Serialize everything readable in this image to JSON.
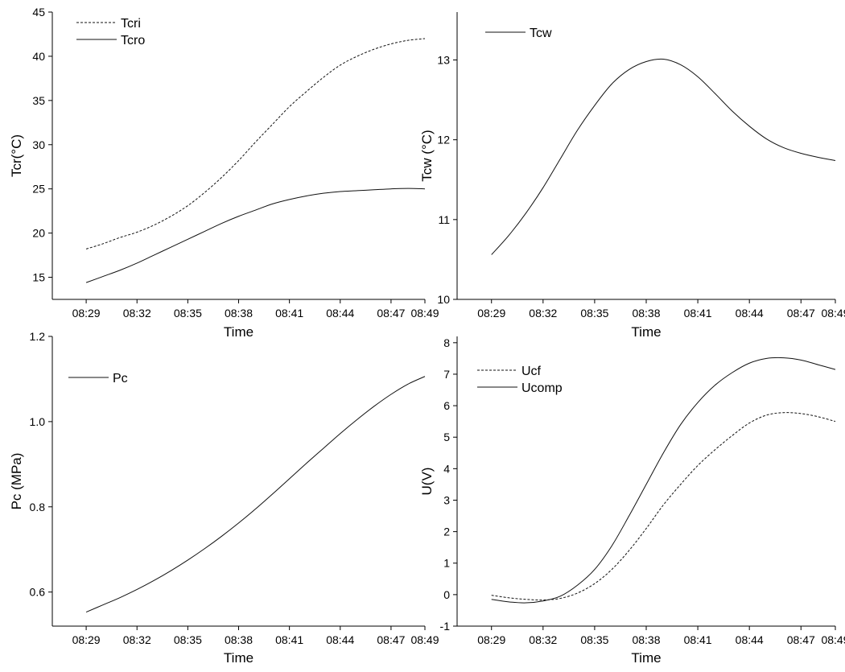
{
  "chart_data": [
    {
      "id": "tcr",
      "type": "line",
      "title": "",
      "xlabel": "Time",
      "ylabel": "Tcr(°C)",
      "xlim": [
        "08:27",
        "08:49"
      ],
      "ylim": [
        12.5,
        45
      ],
      "x_ticks": [
        "08:29",
        "08:32",
        "08:35",
        "08:38",
        "08:41",
        "08:44",
        "08:47",
        "08:49"
      ],
      "y_ticks": [
        15,
        20,
        25,
        30,
        35,
        40,
        45
      ],
      "grid": false,
      "legend": "top-left",
      "series": [
        {
          "name": "Tcri",
          "style": "dashed",
          "x": [
            "08:29",
            "08:30",
            "08:31",
            "08:32",
            "08:33",
            "08:34",
            "08:35",
            "08:36",
            "08:37",
            "08:38",
            "08:39",
            "08:40",
            "08:41",
            "08:42",
            "08:43",
            "08:44",
            "08:45",
            "08:46",
            "08:47",
            "08:48",
            "08:49"
          ],
          "values": [
            18.2,
            18.8,
            19.5,
            20.1,
            20.9,
            21.9,
            23.1,
            24.6,
            26.3,
            28.2,
            30.3,
            32.3,
            34.3,
            36.0,
            37.6,
            39.0,
            40.0,
            40.8,
            41.4,
            41.8,
            42.0
          ]
        },
        {
          "name": "Tcro",
          "style": "solid",
          "x": [
            "08:29",
            "08:30",
            "08:31",
            "08:32",
            "08:33",
            "08:34",
            "08:35",
            "08:36",
            "08:37",
            "08:38",
            "08:39",
            "08:40",
            "08:41",
            "08:42",
            "08:43",
            "08:44",
            "08:45",
            "08:46",
            "08:47",
            "08:48",
            "08:49"
          ],
          "values": [
            14.4,
            15.1,
            15.8,
            16.6,
            17.5,
            18.4,
            19.3,
            20.2,
            21.1,
            21.9,
            22.6,
            23.3,
            23.8,
            24.2,
            24.5,
            24.7,
            24.8,
            24.9,
            25.0,
            25.05,
            25.0
          ]
        }
      ]
    },
    {
      "id": "tcw",
      "type": "line",
      "title": "",
      "xlabel": "Time",
      "ylabel": "Tcw (°C)",
      "xlim": [
        "08:27",
        "08:49"
      ],
      "ylim": [
        10,
        13.6
      ],
      "x_ticks": [
        "08:29",
        "08:32",
        "08:35",
        "08:38",
        "08:41",
        "08:44",
        "08:47",
        "08:49"
      ],
      "y_ticks": [
        10,
        11,
        12,
        13
      ],
      "grid": false,
      "legend": "top-left",
      "series": [
        {
          "name": "Tcw",
          "style": "solid",
          "x": [
            "08:29",
            "08:30",
            "08:31",
            "08:32",
            "08:33",
            "08:34",
            "08:35",
            "08:36",
            "08:37",
            "08:38",
            "08:39",
            "08:40",
            "08:41",
            "08:42",
            "08:43",
            "08:44",
            "08:45",
            "08:46",
            "08:47",
            "08:48",
            "08:49"
          ],
          "values": [
            10.56,
            10.8,
            11.08,
            11.4,
            11.76,
            12.12,
            12.43,
            12.7,
            12.88,
            12.98,
            13.01,
            12.94,
            12.79,
            12.58,
            12.36,
            12.17,
            12.01,
            11.9,
            11.83,
            11.78,
            11.74
          ]
        }
      ]
    },
    {
      "id": "pc",
      "type": "line",
      "title": "",
      "xlabel": "Time",
      "ylabel": "Pc (MPa)",
      "xlim": [
        "08:27",
        "08:49"
      ],
      "ylim": [
        0.52,
        1.2
      ],
      "x_ticks": [
        "08:29",
        "08:32",
        "08:35",
        "08:38",
        "08:41",
        "08:44",
        "08:47",
        "08:49"
      ],
      "y_ticks": [
        0.6,
        0.8,
        1.0,
        1.2
      ],
      "y_tick_labels": [
        "0.6",
        "0.8",
        "1.0",
        "1.2"
      ],
      "grid": false,
      "legend": "top-left",
      "series": [
        {
          "name": "Pc",
          "style": "solid",
          "x": [
            "08:29",
            "08:30",
            "08:31",
            "08:32",
            "08:33",
            "08:34",
            "08:35",
            "08:36",
            "08:37",
            "08:38",
            "08:39",
            "08:40",
            "08:41",
            "08:42",
            "08:43",
            "08:44",
            "08:45",
            "08:46",
            "08:47",
            "08:48",
            "08:49"
          ],
          "values": [
            0.553,
            0.57,
            0.587,
            0.606,
            0.627,
            0.65,
            0.675,
            0.702,
            0.731,
            0.762,
            0.795,
            0.83,
            0.866,
            0.902,
            0.937,
            0.972,
            1.005,
            1.036,
            1.064,
            1.088,
            1.106
          ]
        }
      ]
    },
    {
      "id": "u",
      "type": "line",
      "title": "",
      "xlabel": "Time",
      "ylabel": "U(V)",
      "xlim": [
        "08:27",
        "08:49"
      ],
      "ylim": [
        -1,
        8.2
      ],
      "x_ticks": [
        "08:29",
        "08:32",
        "08:35",
        "08:38",
        "08:41",
        "08:44",
        "08:47",
        "08:49"
      ],
      "y_ticks": [
        -1,
        0,
        1,
        2,
        3,
        4,
        5,
        6,
        7,
        8
      ],
      "grid": false,
      "legend": "top-left",
      "series": [
        {
          "name": "Ucf",
          "style": "dashed",
          "x": [
            "08:29",
            "08:30",
            "08:31",
            "08:32",
            "08:33",
            "08:34",
            "08:35",
            "08:36",
            "08:37",
            "08:38",
            "08:39",
            "08:40",
            "08:41",
            "08:42",
            "08:43",
            "08:44",
            "08:45",
            "08:46",
            "08:47",
            "08:48",
            "08:49"
          ],
          "values": [
            -0.02,
            -0.1,
            -0.15,
            -0.17,
            -0.12,
            0.05,
            0.35,
            0.8,
            1.4,
            2.1,
            2.85,
            3.5,
            4.1,
            4.6,
            5.05,
            5.45,
            5.7,
            5.78,
            5.75,
            5.65,
            5.5
          ]
        },
        {
          "name": "Ucomp",
          "style": "solid",
          "x": [
            "08:29",
            "08:30",
            "08:31",
            "08:32",
            "08:33",
            "08:34",
            "08:35",
            "08:36",
            "08:37",
            "08:38",
            "08:39",
            "08:40",
            "08:41",
            "08:42",
            "08:43",
            "08:44",
            "08:45",
            "08:46",
            "08:47",
            "08:48",
            "08:49"
          ],
          "values": [
            -0.15,
            -0.23,
            -0.26,
            -0.2,
            -0.05,
            0.3,
            0.8,
            1.55,
            2.5,
            3.5,
            4.5,
            5.4,
            6.1,
            6.65,
            7.05,
            7.35,
            7.5,
            7.52,
            7.45,
            7.3,
            7.15
          ]
        }
      ]
    }
  ]
}
